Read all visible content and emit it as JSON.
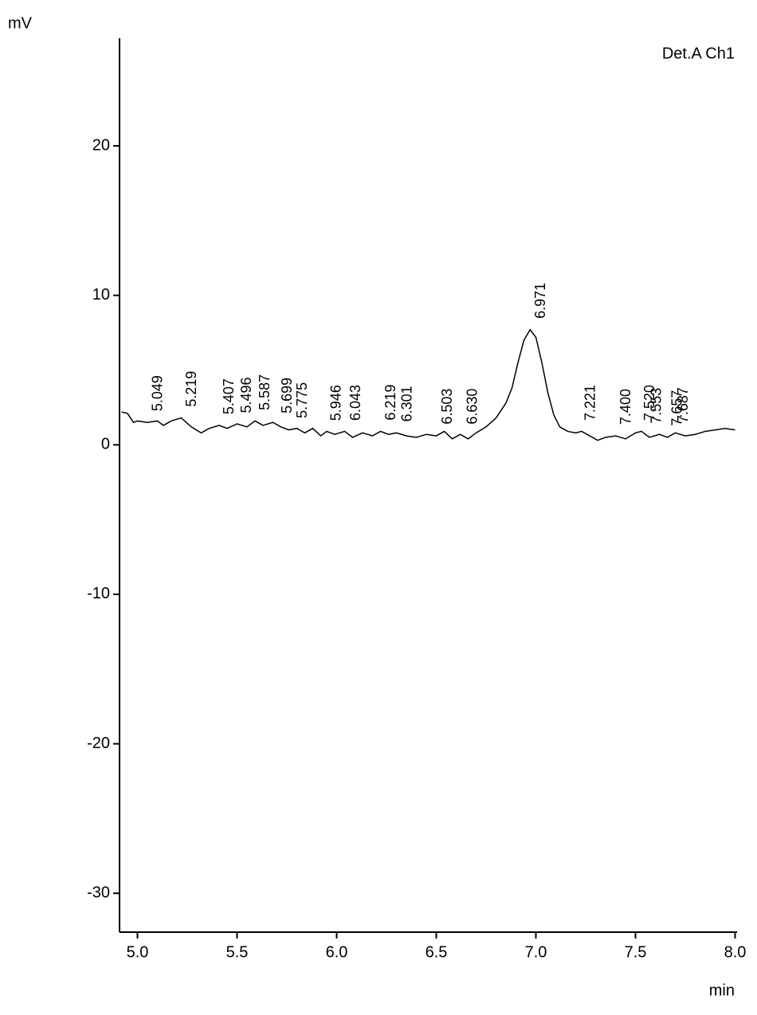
{
  "chart_data": {
    "type": "line",
    "y_unit": "mV",
    "x_unit": "min",
    "legend": "Det.A Ch1",
    "x": [
      4.92,
      4.95,
      4.98,
      5.0,
      5.05,
      5.1,
      5.13,
      5.17,
      5.22,
      5.27,
      5.32,
      5.36,
      5.41,
      5.45,
      5.5,
      5.55,
      5.59,
      5.63,
      5.68,
      5.72,
      5.76,
      5.8,
      5.84,
      5.88,
      5.92,
      5.95,
      5.99,
      6.04,
      6.08,
      6.13,
      6.18,
      6.22,
      6.26,
      6.3,
      6.35,
      6.4,
      6.45,
      6.5,
      6.54,
      6.58,
      6.62,
      6.66,
      6.7,
      6.75,
      6.8,
      6.85,
      6.88,
      6.91,
      6.94,
      6.971,
      7.0,
      7.03,
      7.06,
      7.09,
      7.12,
      7.16,
      7.2,
      7.23,
      7.27,
      7.31,
      7.35,
      7.4,
      7.45,
      7.5,
      7.53,
      7.57,
      7.62,
      7.66,
      7.7,
      7.75,
      7.8,
      7.85,
      7.9,
      7.95,
      8.0
    ],
    "series": [
      {
        "name": "Det.A Ch1",
        "color": "#000000",
        "values": [
          2.2,
          2.1,
          1.5,
          1.6,
          1.5,
          1.6,
          1.3,
          1.6,
          1.8,
          1.2,
          0.8,
          1.1,
          1.3,
          1.1,
          1.4,
          1.2,
          1.6,
          1.3,
          1.5,
          1.2,
          1.0,
          1.1,
          0.8,
          1.1,
          0.6,
          0.9,
          0.7,
          0.9,
          0.5,
          0.8,
          0.6,
          0.9,
          0.7,
          0.8,
          0.6,
          0.5,
          0.7,
          0.6,
          0.9,
          0.4,
          0.7,
          0.4,
          0.8,
          1.2,
          1.8,
          2.8,
          3.8,
          5.5,
          7.0,
          7.7,
          7.2,
          5.5,
          3.5,
          2.0,
          1.2,
          0.9,
          0.8,
          0.9,
          0.6,
          0.3,
          0.5,
          0.6,
          0.4,
          0.8,
          0.9,
          0.5,
          0.7,
          0.5,
          0.8,
          0.6,
          0.7,
          0.9,
          1.0,
          1.1,
          1.0
        ]
      }
    ],
    "peaks": [
      {
        "value": 5.049,
        "label": "5.049"
      },
      {
        "value": 5.219,
        "label": "5.219"
      },
      {
        "value": 5.407,
        "label": "5.407"
      },
      {
        "value": 5.496,
        "label": "5.496"
      },
      {
        "value": 5.587,
        "label": "5.587"
      },
      {
        "value": 5.699,
        "label": "5.699"
      },
      {
        "value": 5.775,
        "label": "5.775"
      },
      {
        "value": 5.946,
        "label": "5.946"
      },
      {
        "value": 6.043,
        "label": "6.043"
      },
      {
        "value": 6.219,
        "label": "6.219"
      },
      {
        "value": 6.301,
        "label": "6.301"
      },
      {
        "value": 6.503,
        "label": "6.503"
      },
      {
        "value": 6.63,
        "label": "6.630"
      },
      {
        "value": 6.971,
        "label": "6.971"
      },
      {
        "value": 7.221,
        "label": "7.221"
      },
      {
        "value": 7.4,
        "label": "7.400"
      },
      {
        "value": 7.52,
        "label": "7.520"
      },
      {
        "value": 7.553,
        "label": "7.553"
      },
      {
        "value": 7.657,
        "label": "7.657"
      },
      {
        "value": 7.687,
        "label": "7.687"
      }
    ],
    "xlim": [
      4.91,
      8.01
    ],
    "ylim": [
      -32.6,
      27.2
    ],
    "xticks": [
      {
        "value": 5,
        "label": "5.0"
      },
      5.5,
      {
        "value": 6,
        "label": "6.0"
      },
      6.5,
      {
        "value": 7,
        "label": "7.0"
      },
      7.5,
      {
        "value": 8,
        "label": "8.0"
      }
    ],
    "yticks": [
      -30,
      -20,
      -10,
      0,
      10,
      20
    ],
    "grid": false
  }
}
